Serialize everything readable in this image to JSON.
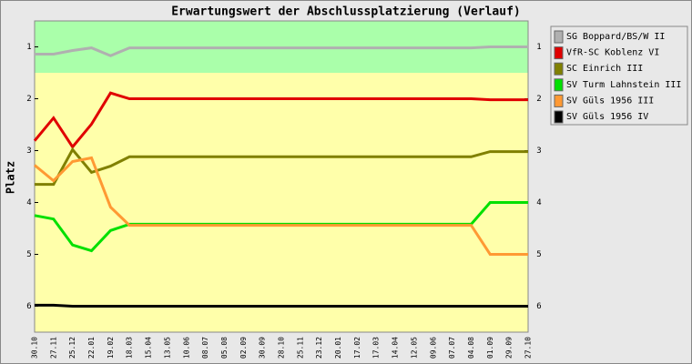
{
  "chart_data": {
    "type": "line",
    "title": "Erwartungswert der Abschlussplatzierung (Verlauf)",
    "y_label": "Platz",
    "categories": [
      "30.10",
      "27.11",
      "25.12",
      "22.01",
      "19.02",
      "18.03",
      "15.04",
      "13.05",
      "10.06",
      "08.07",
      "05.08",
      "02.09",
      "30.09",
      "28.10",
      "25.11",
      "23.12",
      "20.01",
      "17.02",
      "17.03",
      "14.04",
      "12.05",
      "09.06",
      "07.07",
      "04.08",
      "01.09",
      "29.09",
      "27.10"
    ],
    "ylim": [
      0.5,
      6.5
    ],
    "y_inverted": true,
    "yticks": [
      1,
      2,
      3,
      4,
      5,
      6
    ],
    "bands": [
      {
        "from": 0.5,
        "to": 1.5,
        "color": "#aaffaa"
      },
      {
        "from": 1.5,
        "to": 6.5,
        "color": "#ffffaa"
      }
    ],
    "legend": "right",
    "series": [
      {
        "name": "SG Boppard/BS/W II",
        "color": "#b0b0b0",
        "values": [
          1.14,
          1.14,
          1.07,
          1.02,
          1.17,
          1.02,
          1.02,
          1.02,
          1.02,
          1.02,
          1.02,
          1.02,
          1.02,
          1.02,
          1.02,
          1.02,
          1.02,
          1.02,
          1.02,
          1.02,
          1.02,
          1.02,
          1.02,
          1.02,
          1.0,
          1.0,
          1.0
        ]
      },
      {
        "name": "VfR-SC Koblenz VI",
        "color": "#e00000",
        "values": [
          2.81,
          2.37,
          2.93,
          2.49,
          1.89,
          2.0,
          2.0,
          2.0,
          2.0,
          2.0,
          2.0,
          2.0,
          2.0,
          2.0,
          2.0,
          2.0,
          2.0,
          2.0,
          2.0,
          2.0,
          2.0,
          2.0,
          2.0,
          2.0,
          2.02,
          2.02,
          2.02
        ]
      },
      {
        "name": "SC Einrich III",
        "color": "#808000",
        "values": [
          3.65,
          3.65,
          2.98,
          3.42,
          3.3,
          3.12,
          3.12,
          3.12,
          3.12,
          3.12,
          3.12,
          3.12,
          3.12,
          3.12,
          3.12,
          3.12,
          3.12,
          3.12,
          3.12,
          3.12,
          3.12,
          3.12,
          3.12,
          3.12,
          3.02,
          3.02,
          3.02
        ]
      },
      {
        "name": "SV Turm Lahnstein III",
        "color": "#00e000",
        "values": [
          4.25,
          4.32,
          4.82,
          4.93,
          4.54,
          4.42,
          4.42,
          4.42,
          4.42,
          4.42,
          4.42,
          4.42,
          4.42,
          4.42,
          4.42,
          4.42,
          4.42,
          4.42,
          4.42,
          4.42,
          4.42,
          4.42,
          4.42,
          4.42,
          4.0,
          4.0,
          4.0
        ]
      },
      {
        "name": "SV Güls 1956 III",
        "color": "#ff9933",
        "values": [
          3.28,
          3.58,
          3.21,
          3.14,
          4.09,
          4.44,
          4.44,
          4.44,
          4.44,
          4.44,
          4.44,
          4.44,
          4.44,
          4.44,
          4.44,
          4.44,
          4.44,
          4.44,
          4.44,
          4.44,
          4.44,
          4.44,
          4.44,
          4.44,
          5.0,
          5.0,
          5.0
        ]
      },
      {
        "name": "SV Güls 1956 IV",
        "color": "#000000",
        "values": [
          5.98,
          5.98,
          6.0,
          6.0,
          6.0,
          6.0,
          6.0,
          6.0,
          6.0,
          6.0,
          6.0,
          6.0,
          6.0,
          6.0,
          6.0,
          6.0,
          6.0,
          6.0,
          6.0,
          6.0,
          6.0,
          6.0,
          6.0,
          6.0,
          6.0,
          6.0,
          6.0
        ]
      }
    ]
  }
}
